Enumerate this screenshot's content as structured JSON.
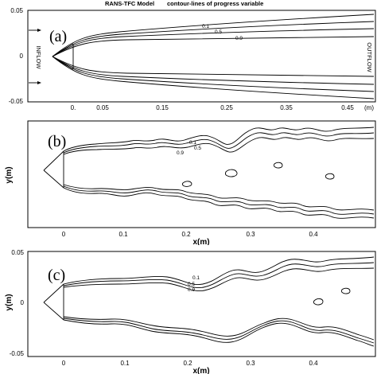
{
  "panel_a": {
    "label": "(a)",
    "model_title": "RANS-TFC Model",
    "subtitle": "contour-lines of progress variable",
    "inflow": "INFLOW",
    "outflow": "OUTFLOW",
    "y_ticks": [
      "0.05",
      "0",
      "-0.05"
    ],
    "x_ticks": [
      "0.",
      "0.05",
      "0.15",
      "0.25",
      "0.35",
      "0.45"
    ],
    "x_unit": "(m)",
    "contour_labels": [
      "0.1",
      "0.5",
      "0.9"
    ]
  },
  "panel_b": {
    "label": "(b)",
    "y_axis": "y(m)",
    "x_axis": "x(m)",
    "x_ticks": [
      "0",
      "0.1",
      "0.2",
      "0.3",
      "0.4"
    ],
    "contour_labels": [
      "0.1",
      "0.5",
      "0.9"
    ]
  },
  "panel_c": {
    "label": "(c)",
    "y_axis": "y(m)",
    "x_axis": "x(m)",
    "y_ticks": [
      "0.05",
      "0",
      "-0.05"
    ],
    "x_ticks": [
      "0",
      "0.1",
      "0.2",
      "0.3",
      "0.4"
    ],
    "contour_labels": [
      "0.1",
      "0.5",
      "0.9"
    ]
  }
}
